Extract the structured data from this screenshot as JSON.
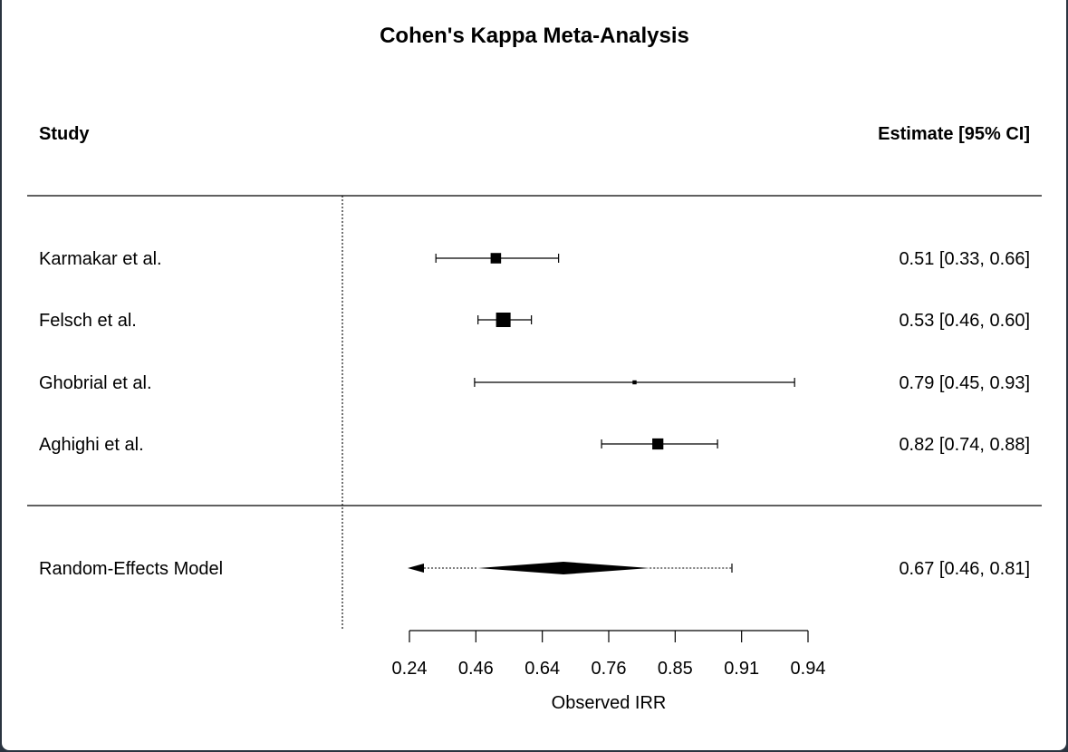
{
  "chart_data": {
    "type": "forest",
    "title": "Cohen's Kappa Meta-Analysis",
    "header_left": "Study",
    "header_right": "Estimate [95% CI]",
    "xlabel": "Observed IRR",
    "reference_line": 0,
    "studies": [
      {
        "name": "Karmakar et al.",
        "estimate": 0.51,
        "lower": 0.33,
        "upper": 0.66,
        "text": "0.51 [0.33, 0.66]"
      },
      {
        "name": "Felsch et al.",
        "estimate": 0.53,
        "lower": 0.46,
        "upper": 0.6,
        "text": "0.53 [0.46, 0.60]"
      },
      {
        "name": "Ghobrial et al.",
        "estimate": 0.79,
        "lower": 0.45,
        "upper": 0.93,
        "text": "0.79 [0.45, 0.93]"
      },
      {
        "name": "Aghighi et al.",
        "estimate": 0.82,
        "lower": 0.74,
        "upper": 0.88,
        "text": "0.82 [0.74, 0.88]"
      }
    ],
    "summary": {
      "name": "Random-Effects Model",
      "estimate": 0.67,
      "lower": 0.46,
      "upper": 0.81,
      "text": "0.67 [0.46, 0.81]"
    },
    "x_ticks": [
      "0.24",
      "0.46",
      "0.64",
      "0.76",
      "0.85",
      "0.91",
      "0.94"
    ]
  }
}
